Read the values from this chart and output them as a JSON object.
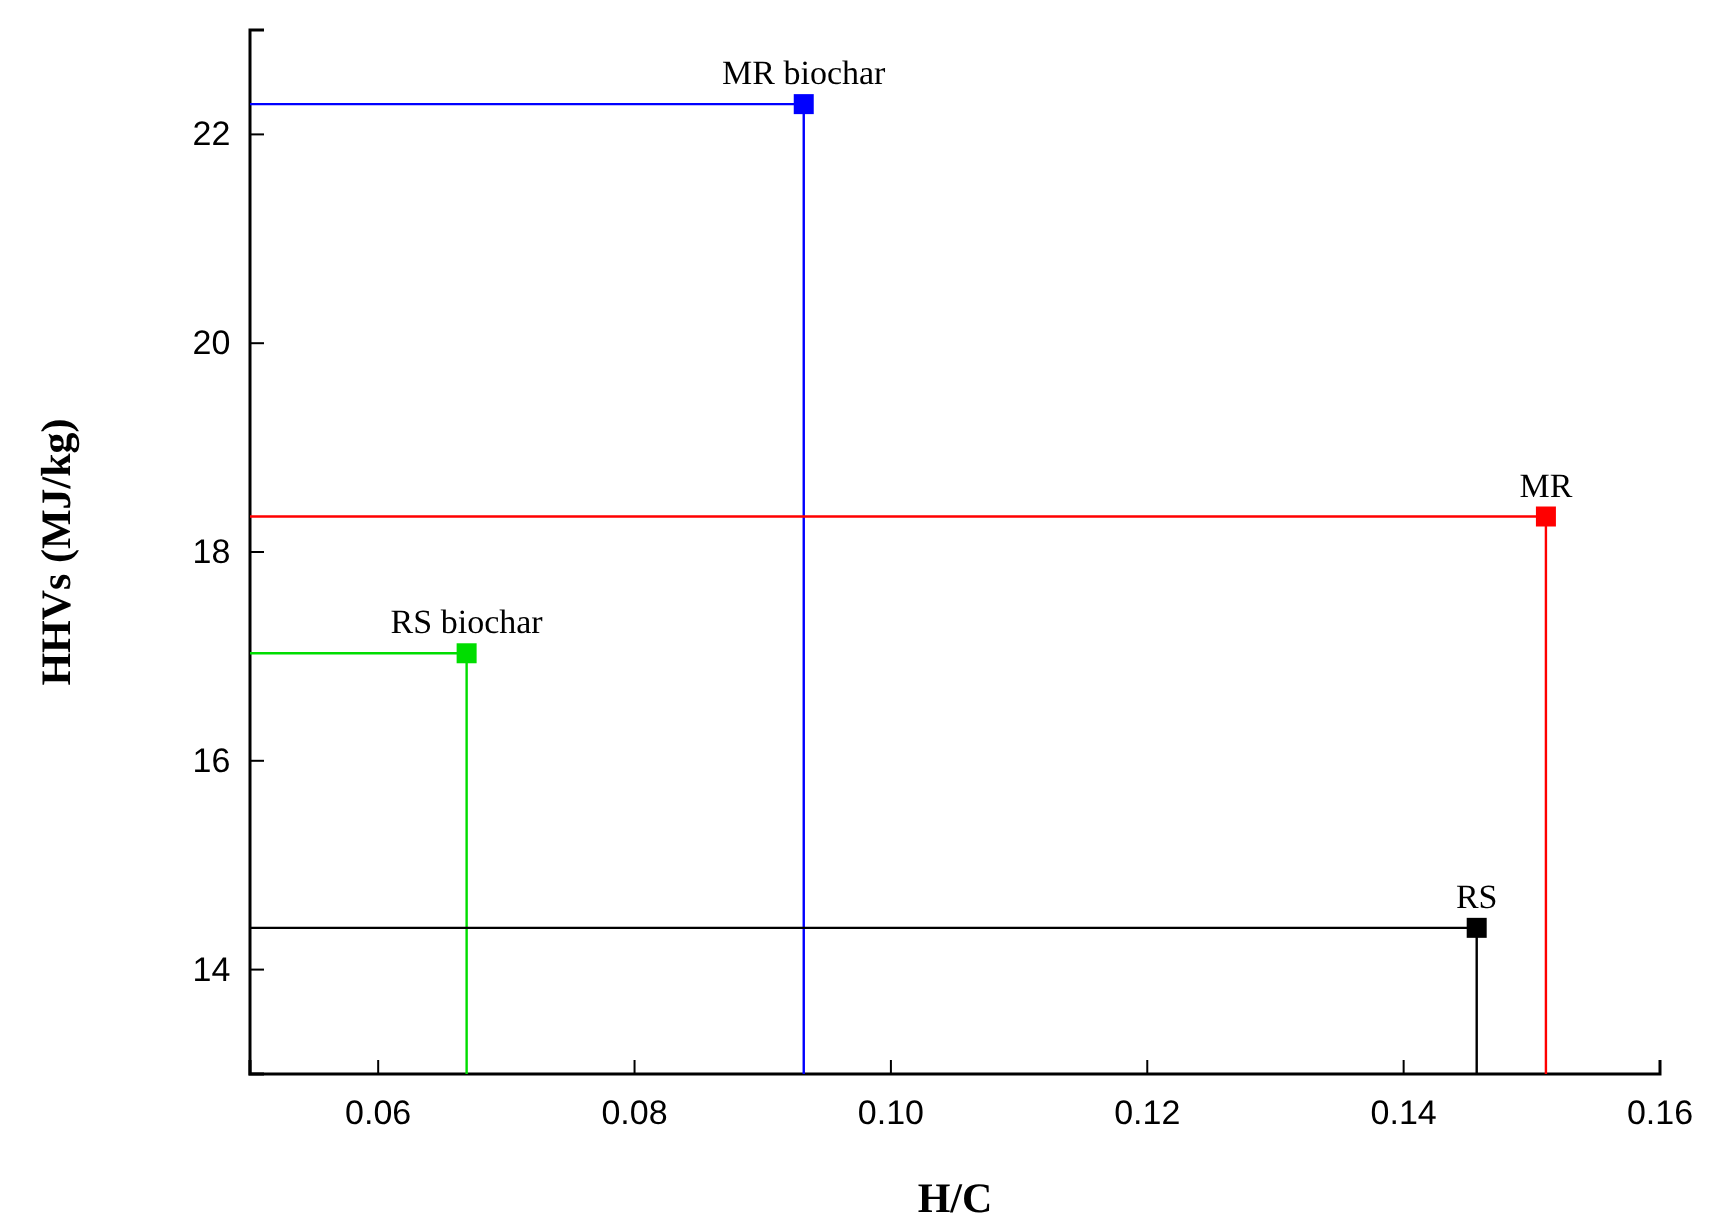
{
  "chart_data": {
    "type": "scatter",
    "xlabel": "H/C",
    "ylabel": "HHVs (MJ/kg)",
    "xlim": [
      0.05,
      0.16
    ],
    "xticks": [
      0.06,
      0.08,
      {
        "value": 0.1,
        "label": "0.10"
      },
      0.12,
      0.14,
      0.16
    ],
    "ylim": [
      13,
      23
    ],
    "yticks": [
      14,
      16,
      18,
      20,
      22
    ],
    "grid": false,
    "legend": false,
    "marker": "square",
    "series": [
      {
        "type": "line",
        "color": "#0000ff",
        "x": [
          0.05,
          0.0932,
          0.0932
        ],
        "values": [
          22.29,
          22.29,
          13
        ],
        "marker": "none"
      },
      {
        "type": "line",
        "color": "#ff0000",
        "x": [
          0.05,
          0.1511,
          0.1511
        ],
        "values": [
          18.34,
          18.34,
          13
        ],
        "marker": "none"
      },
      {
        "type": "line",
        "color": "#00dd00",
        "x": [
          0.05,
          0.0669,
          0.0669
        ],
        "values": [
          17.03,
          17.03,
          13
        ],
        "marker": "none"
      },
      {
        "type": "line",
        "color": "#000000",
        "x": [
          0.05,
          0.1457,
          0.1457
        ],
        "values": [
          14.4,
          14.4,
          13
        ],
        "marker": "none"
      },
      {
        "name": "MR biochar",
        "color": "#0000ff",
        "x": [
          0.0932
        ],
        "values": [
          22.29
        ]
      },
      {
        "name": "MR",
        "color": "#ff0000",
        "x": [
          0.1511
        ],
        "values": [
          18.34
        ]
      },
      {
        "name": "RS biochar",
        "color": "#00dd00",
        "x": [
          0.0669
        ],
        "values": [
          17.03
        ]
      },
      {
        "name": "RS",
        "color": "#000000",
        "x": [
          0.1457
        ],
        "values": [
          14.4
        ]
      }
    ]
  }
}
